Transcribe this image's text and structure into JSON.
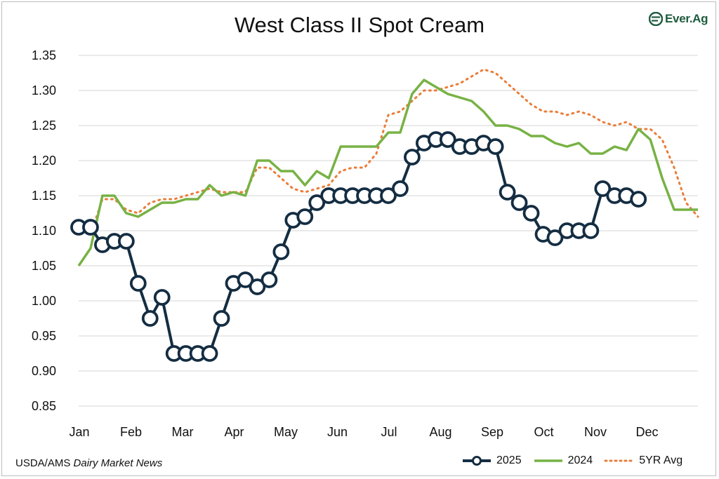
{
  "title": "West Class II Spot Cream",
  "logo_text": "Ever.Ag",
  "source": {
    "prefix": "USDA/AMS ",
    "italic": "Dairy Market News"
  },
  "colors": {
    "s2025": "#142d42",
    "s2024": "#77b244",
    "avg": "#ea7d39",
    "grid": "#d4d4d4",
    "logo": "#1e5b3e"
  },
  "chart_data": {
    "type": "line",
    "title": "West Class II Spot Cream",
    "ylim": [
      0.85,
      1.35
    ],
    "ytick_step": 0.05,
    "y_ticks": [
      "0.85",
      "0.90",
      "0.95",
      "1.00",
      "1.05",
      "1.10",
      "1.15",
      "1.20",
      "1.25",
      "1.30",
      "1.35"
    ],
    "x_labels": [
      "Jan",
      "Feb",
      "Mar",
      "Apr",
      "May",
      "Jun",
      "Jul",
      "Aug",
      "Sep",
      "Oct",
      "Nov",
      "Dec"
    ],
    "weeks_per_year": 52,
    "grid": true,
    "legend_position": "bottom-right",
    "series": [
      {
        "name": "2025",
        "style": "line-markers",
        "values": [
          1.105,
          1.105,
          1.08,
          1.085,
          1.085,
          1.025,
          0.975,
          1.005,
          0.925,
          0.925,
          0.925,
          0.925,
          0.975,
          1.025,
          1.03,
          1.02,
          1.03,
          1.07,
          1.115,
          1.12,
          1.14,
          1.15,
          1.15,
          1.15,
          1.15,
          1.15,
          1.15,
          1.16,
          1.205,
          1.225,
          1.23,
          1.23,
          1.22,
          1.22,
          1.225,
          1.22,
          1.155,
          1.14,
          1.125,
          1.095,
          1.09,
          1.1,
          1.1,
          1.1,
          1.16,
          1.15,
          1.15,
          1.145
        ]
      },
      {
        "name": "2024",
        "style": "line",
        "values": [
          1.05,
          1.075,
          1.15,
          1.15,
          1.125,
          1.12,
          1.13,
          1.14,
          1.14,
          1.145,
          1.145,
          1.165,
          1.15,
          1.155,
          1.15,
          1.2,
          1.2,
          1.185,
          1.185,
          1.165,
          1.185,
          1.175,
          1.22,
          1.22,
          1.22,
          1.22,
          1.24,
          1.24,
          1.295,
          1.315,
          1.305,
          1.295,
          1.29,
          1.285,
          1.27,
          1.25,
          1.25,
          1.245,
          1.235,
          1.235,
          1.225,
          1.22,
          1.225,
          1.21,
          1.21,
          1.22,
          1.215,
          1.245,
          1.23,
          1.175,
          1.13,
          1.13,
          1.13
        ]
      },
      {
        "name": "5YR Avg",
        "style": "dotted",
        "values": [
          1.11,
          1.095,
          1.145,
          1.145,
          1.13,
          1.125,
          1.14,
          1.145,
          1.145,
          1.15,
          1.155,
          1.16,
          1.155,
          1.155,
          1.155,
          1.19,
          1.19,
          1.175,
          1.16,
          1.155,
          1.16,
          1.165,
          1.185,
          1.19,
          1.19,
          1.21,
          1.265,
          1.27,
          1.285,
          1.3,
          1.3,
          1.305,
          1.31,
          1.32,
          1.33,
          1.325,
          1.31,
          1.295,
          1.28,
          1.27,
          1.27,
          1.265,
          1.27,
          1.265,
          1.255,
          1.25,
          1.255,
          1.245,
          1.245,
          1.23,
          1.19,
          1.14,
          1.12
        ]
      }
    ]
  }
}
